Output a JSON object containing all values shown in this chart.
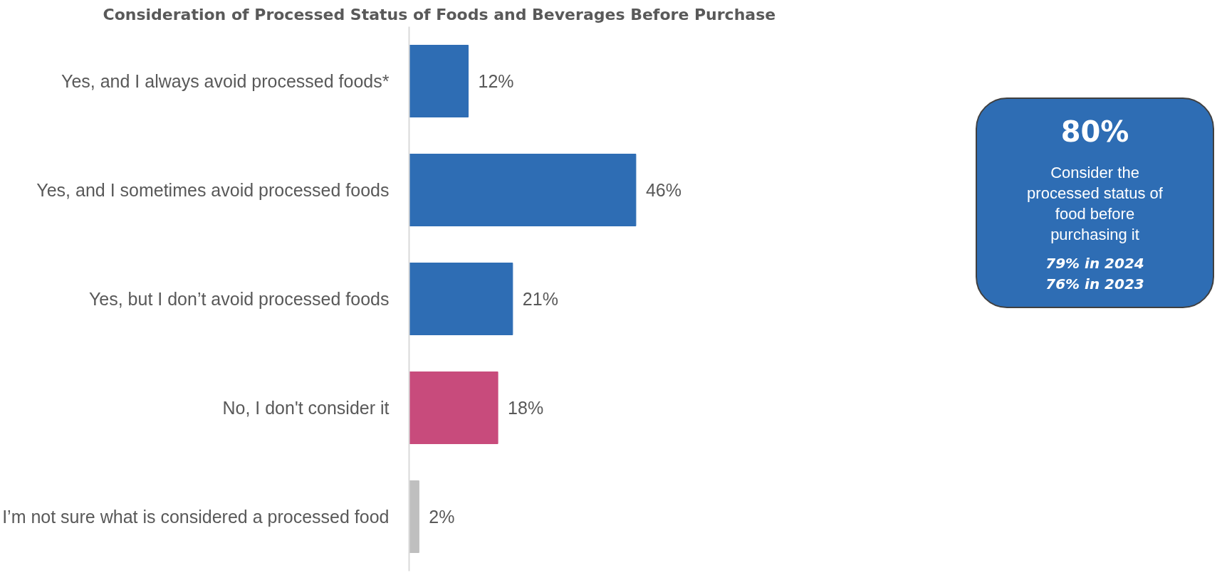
{
  "chart_data": {
    "type": "bar",
    "orientation": "horizontal",
    "title": "Consideration of Processed Status of Foods and Beverages Before Purchase",
    "categories": [
      "Yes, and I always avoid processed foods*",
      "Yes, and I sometimes avoid processed foods",
      "Yes, but I don’t avoid processed foods",
      "No, I don't consider it",
      "I’m not sure what is considered a processed food"
    ],
    "values": [
      12,
      46,
      21,
      18,
      2
    ],
    "colors": [
      "#2e6db4",
      "#2e6db4",
      "#2e6db4",
      "#c84b7c",
      "#bfbfbf"
    ],
    "value_labels": [
      "12%",
      "46%",
      "21%",
      "18%",
      "2%"
    ],
    "tick_labels": "y",
    "grid": false,
    "annotations": [
      "80%",
      "Consider the processed status of food before purchasing it",
      "79% in 2024",
      "76% in 2023"
    ]
  }
}
